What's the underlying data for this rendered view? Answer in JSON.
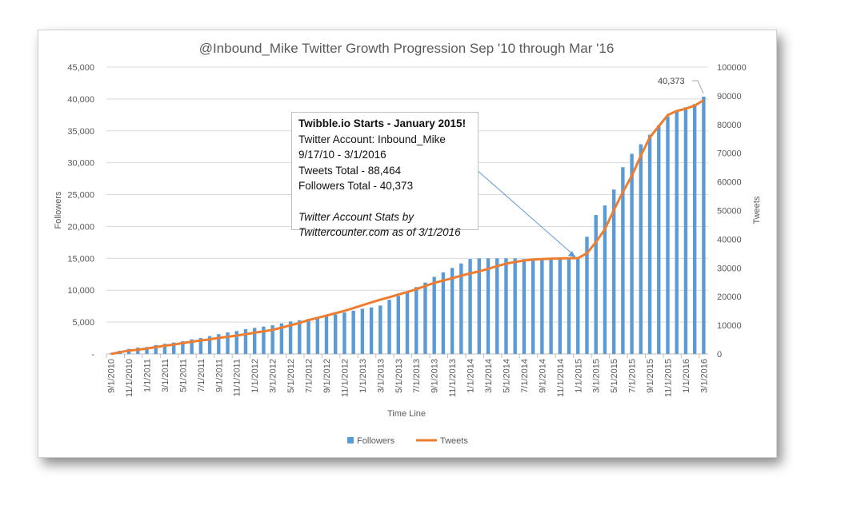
{
  "chart_data": {
    "type": "bar+line",
    "title": "@Inbound_Mike Twitter Growth Progression Sep '10 through Mar '16",
    "xlabel": "Time Line",
    "ylabel": "Followers",
    "y2label": "Tweets",
    "ylim": [
      0,
      45000
    ],
    "y2lim": [
      0,
      100000
    ],
    "yticks": [
      "-",
      "5,000",
      "10,000",
      "15,000",
      "20,000",
      "25,000",
      "30,000",
      "35,000",
      "40,000",
      "45,000"
    ],
    "y2ticks": [
      "0",
      "10000",
      "20000",
      "30000",
      "40000",
      "50000",
      "60000",
      "70000",
      "80000",
      "90000",
      "100000"
    ],
    "xtick_labels": [
      "9/1/2010",
      "11/1/2010",
      "1/1/2011",
      "3/1/2011",
      "5/1/2011",
      "7/1/2011",
      "9/1/2011",
      "11/1/2011",
      "1/1/2012",
      "3/1/2012",
      "5/1/2012",
      "7/1/2012",
      "9/1/2012",
      "11/1/2012",
      "1/1/2013",
      "3/1/2013",
      "5/1/2013",
      "7/1/2013",
      "9/1/2013",
      "11/1/2013",
      "1/1/2014",
      "3/1/2014",
      "5/1/2014",
      "7/1/2014",
      "9/1/2014",
      "11/1/2014",
      "1/1/2015",
      "3/1/2015",
      "5/1/2015",
      "7/1/2015",
      "9/1/2015",
      "11/1/2015",
      "1/1/2016",
      "3/1/2016"
    ],
    "grid": true,
    "legend_position": "bottom",
    "series": [
      {
        "name": "Followers",
        "type": "bar",
        "axis": "left",
        "color": "#5b9bd5",
        "values": [
          100,
          500,
          800,
          1000,
          1100,
          1400,
          1600,
          1800,
          2000,
          2300,
          2500,
          2800,
          3100,
          3400,
          3600,
          3900,
          4100,
          4300,
          4500,
          4800,
          5100,
          5300,
          5500,
          5700,
          5900,
          6200,
          6500,
          6800,
          7100,
          7300,
          7600,
          8500,
          9100,
          9800,
          10500,
          11200,
          12100,
          12800,
          13500,
          14200,
          14900,
          15000,
          15000,
          15000,
          15000,
          15000,
          14900,
          14900,
          14900,
          14900,
          14900,
          14900,
          14900,
          18400,
          21800,
          23300,
          25800,
          29300,
          31400,
          32900,
          34400,
          35900,
          37300,
          38200,
          38700,
          39200,
          40373
        ]
      },
      {
        "name": "Tweets",
        "type": "line",
        "axis": "right",
        "color": "#ed7d31",
        "values": [
          0,
          600,
          1200,
          1500,
          1900,
          2400,
          2900,
          3300,
          3800,
          4300,
          4700,
          5100,
          5600,
          6000,
          6400,
          6900,
          7400,
          7900,
          8400,
          9200,
          10000,
          10800,
          11800,
          12600,
          13400,
          14200,
          15000,
          16000,
          17000,
          18000,
          18900,
          19800,
          20700,
          21600,
          22600,
          23700,
          24800,
          25600,
          26400,
          27300,
          28100,
          28800,
          29700,
          30600,
          31500,
          32100,
          32600,
          32900,
          33100,
          33200,
          33300,
          33400,
          33400,
          35100,
          39000,
          43500,
          50100,
          56500,
          62100,
          69100,
          75500,
          79400,
          83300,
          84700,
          85500,
          86600,
          88464
        ]
      }
    ],
    "data_label": "40,373",
    "annotation": {
      "title": "Twibble.io Starts - January 2015!",
      "lines": [
        "Twitter Account:  Inbound_Mike",
        "9/17/10 - 3/1/2016",
        "Tweets Total - 88,464",
        "Followers Total - 40,373"
      ],
      "italic_lines": [
        "Twitter Account Stats by",
        "Twittercounter.com as of 3/1/2016"
      ]
    }
  }
}
